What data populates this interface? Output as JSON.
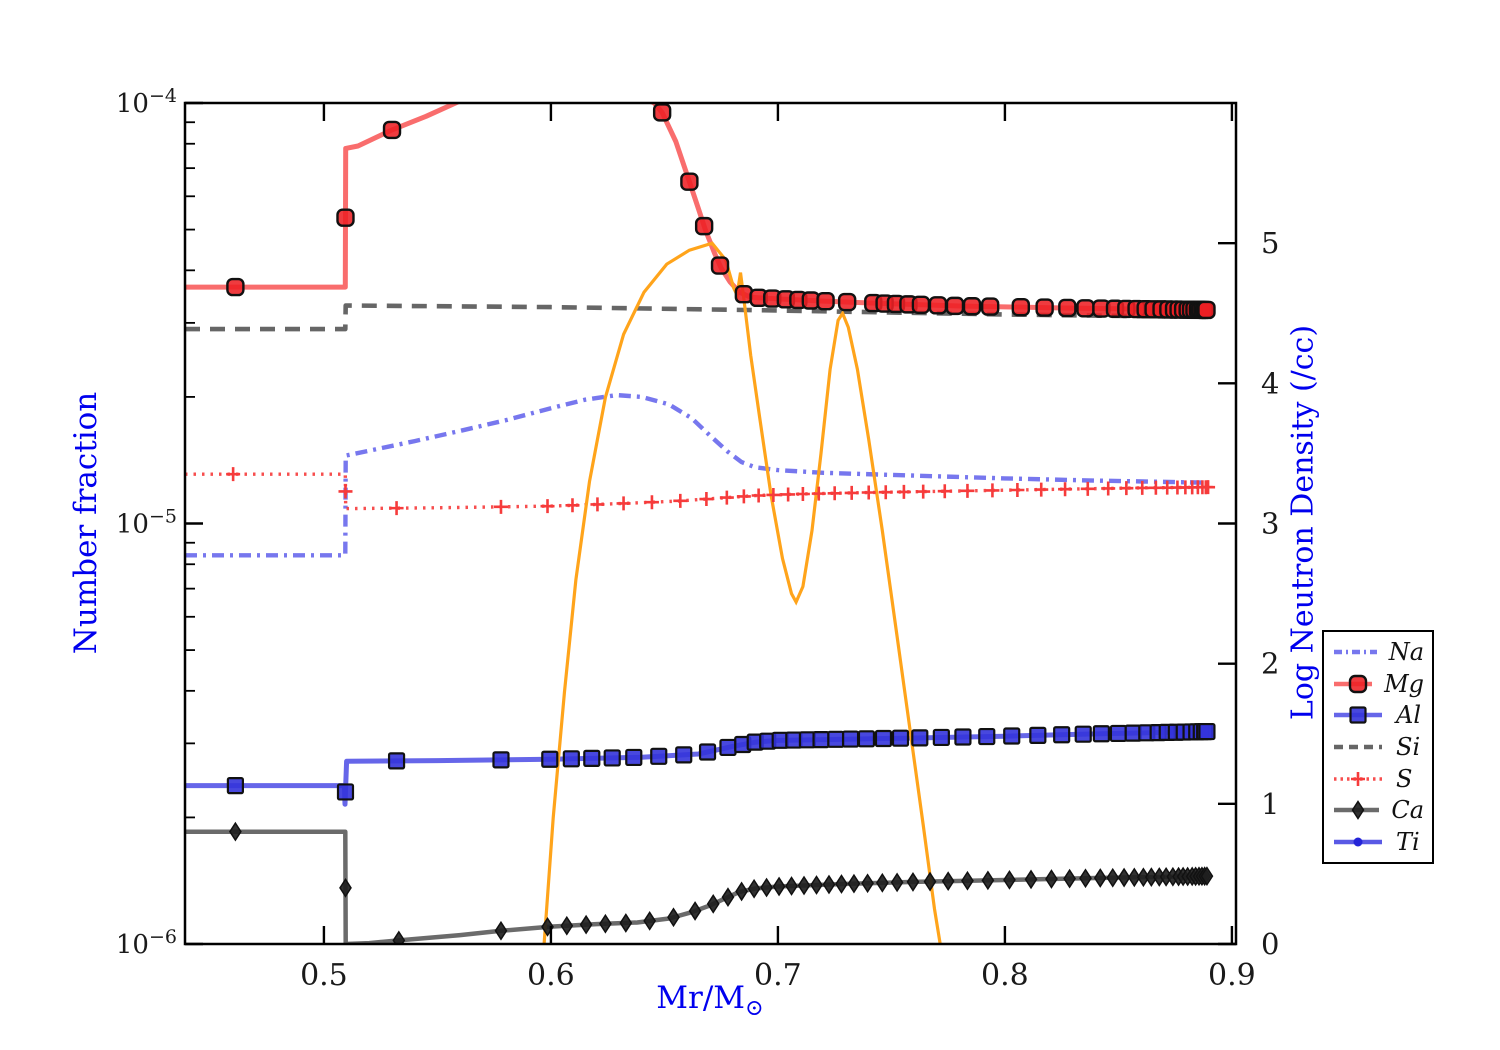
{
  "figure": {
    "background": "#ffffff",
    "colors": {
      "axis_label": "#0000ee",
      "tick_label": "#1a1a1a",
      "frame": "#000000"
    }
  },
  "chart_data": {
    "type": "line",
    "title": "",
    "xlabel_main": "Mr/M",
    "xlabel_sub": "⊙",
    "ylabel_left": "Number fraction",
    "ylabel_right": "Log Neutron Density (/cc)",
    "x_axis": {
      "min": 0.4388,
      "max": 0.9018,
      "ticks": [
        0.5,
        0.6,
        0.7,
        0.8,
        0.9
      ],
      "tick_labels": [
        "0.5",
        "0.6",
        "0.7",
        "0.8",
        "0.9"
      ]
    },
    "y_left_axis": {
      "scale": "log",
      "min": 1e-06,
      "max": 0.0001,
      "tick_exponents": [
        -4,
        -5,
        -6
      ],
      "tick_labels": [
        "10−4",
        "10−5",
        "10−6"
      ]
    },
    "y_right_axis": {
      "scale": "linear",
      "value_at_bottom": 0,
      "value_at_top": 6.0,
      "ticks": [
        0,
        1,
        2,
        3,
        4,
        5
      ],
      "tick_labels": [
        "0",
        "1",
        "2",
        "3",
        "4",
        "5"
      ]
    },
    "series": [
      {
        "name": "Na",
        "label": "Na",
        "axis": "left",
        "color": "#4343e8",
        "line": "dashdot",
        "width": 4.4,
        "opacity": 0.72,
        "marker": "none",
        "points": [
          [
            0.4388,
            8.4e-06
          ],
          [
            0.5094,
            8.4e-06
          ],
          [
            0.5096,
            1.45e-05
          ],
          [
            0.52,
            1.49e-05
          ],
          [
            0.54,
            1.57e-05
          ],
          [
            0.56,
            1.66e-05
          ],
          [
            0.58,
            1.76e-05
          ],
          [
            0.6,
            1.88e-05
          ],
          [
            0.615,
            1.97e-05
          ],
          [
            0.629,
            2.02e-05
          ],
          [
            0.64,
            2e-05
          ],
          [
            0.652,
            1.92e-05
          ],
          [
            0.662,
            1.78e-05
          ],
          [
            0.67,
            1.62e-05
          ],
          [
            0.678,
            1.48e-05
          ],
          [
            0.684,
            1.4e-05
          ],
          [
            0.69,
            1.36e-05
          ],
          [
            0.7,
            1.34e-05
          ],
          [
            0.72,
            1.32e-05
          ],
          [
            0.76,
            1.3e-05
          ],
          [
            0.8,
            1.28e-05
          ],
          [
            0.84,
            1.265e-05
          ],
          [
            0.889,
            1.25e-05
          ]
        ],
        "markers_x": []
      },
      {
        "name": "Mg",
        "label": "Mg",
        "axis": "left",
        "color": "#f84d4d",
        "line": "solid",
        "width": 5,
        "opacity": 0.82,
        "marker": "roundsquare",
        "marker_fill": "#ed2024",
        "points": [
          [
            0.4388,
            3.65e-05
          ],
          [
            0.5094,
            3.65e-05
          ],
          [
            0.5096,
            7.8e-05
          ],
          [
            0.515,
            7.9e-05
          ],
          [
            0.53,
            8.63e-05
          ],
          [
            0.545,
            9.3e-05
          ],
          [
            0.558,
            0.0001
          ],
          [
            0.565,
            0.000104
          ],
          [
            0.636,
            0.000106
          ],
          [
            0.6455,
            0.0001
          ],
          [
            0.649,
            9.5e-05
          ],
          [
            0.655,
            8.1e-05
          ],
          [
            0.661,
            6.5e-05
          ],
          [
            0.665,
            5.6e-05
          ],
          [
            0.668,
            5e-05
          ],
          [
            0.672,
            4.4e-05
          ],
          [
            0.675,
            4.05e-05
          ],
          [
            0.679,
            3.75e-05
          ],
          [
            0.683,
            3.55e-05
          ],
          [
            0.688,
            3.45e-05
          ],
          [
            0.7,
            3.42e-05
          ],
          [
            0.72,
            3.38e-05
          ],
          [
            0.75,
            3.33e-05
          ],
          [
            0.78,
            3.29e-05
          ],
          [
            0.82,
            3.26e-05
          ],
          [
            0.85,
            3.24e-05
          ],
          [
            0.889,
            3.22e-05
          ]
        ],
        "markers_x": [
          0.461,
          0.5095,
          0.53,
          0.649,
          0.661,
          0.6675,
          0.6745,
          0.685,
          0.6915,
          0.6975,
          0.7035,
          0.709,
          0.7145,
          0.721,
          0.7305,
          0.742,
          0.747,
          0.752,
          0.7575,
          0.763,
          0.7705,
          0.778,
          0.7855,
          0.7935,
          0.807,
          0.8175,
          0.8275,
          0.8355,
          0.8425,
          0.8485,
          0.8535,
          0.858,
          0.862,
          0.8655,
          0.869,
          0.872,
          0.8745,
          0.8765,
          0.8785,
          0.8805,
          0.882,
          0.8835,
          0.885,
          0.886,
          0.887,
          0.888,
          0.8888
        ]
      },
      {
        "name": "Al",
        "label": "Al",
        "axis": "left",
        "color": "#4040e4",
        "line": "solid",
        "width": 5,
        "opacity": 0.8,
        "marker": "square",
        "marker_fill": "#3434da",
        "points": [
          [
            0.4388,
            2.38e-06
          ],
          [
            0.509,
            2.38e-06
          ],
          [
            0.5093,
            2.15e-06
          ],
          [
            0.51,
            2.72e-06
          ],
          [
            0.55,
            2.73e-06
          ],
          [
            0.6,
            2.75e-06
          ],
          [
            0.64,
            2.78e-06
          ],
          [
            0.665,
            2.83e-06
          ],
          [
            0.68,
            2.95e-06
          ],
          [
            0.69,
            3.02e-06
          ],
          [
            0.7,
            3.05e-06
          ],
          [
            0.73,
            3.07e-06
          ],
          [
            0.76,
            3.09e-06
          ],
          [
            0.8,
            3.12e-06
          ],
          [
            0.84,
            3.16e-06
          ],
          [
            0.889,
            3.2e-06
          ]
        ],
        "markers_x": [
          0.461,
          0.5095,
          0.532,
          0.578,
          0.5995,
          0.609,
          0.618,
          0.627,
          0.6365,
          0.6475,
          0.6585,
          0.669,
          0.678,
          0.6845,
          0.69,
          0.6955,
          0.701,
          0.707,
          0.713,
          0.719,
          0.7255,
          0.732,
          0.739,
          0.7465,
          0.754,
          0.7625,
          0.772,
          0.7815,
          0.792,
          0.803,
          0.8145,
          0.825,
          0.8345,
          0.8425,
          0.85,
          0.8565,
          0.8625,
          0.8675,
          0.8715,
          0.8755,
          0.879,
          0.882,
          0.8845,
          0.8865,
          0.888,
          0.889
        ]
      },
      {
        "name": "Si",
        "label": "Si",
        "axis": "left",
        "color": "#404040",
        "line": "dashed",
        "width": 4.6,
        "opacity": 0.8,
        "marker": "none",
        "points": [
          [
            0.4388,
            2.9e-05
          ],
          [
            0.5094,
            2.9e-05
          ],
          [
            0.5096,
            3.3e-05
          ],
          [
            0.6,
            3.27e-05
          ],
          [
            0.7,
            3.21e-05
          ],
          [
            0.8,
            3.14e-05
          ],
          [
            0.889,
            3.1e-05
          ]
        ],
        "markers_x": []
      },
      {
        "name": "S",
        "label": "S",
        "axis": "left",
        "color": "#f63b3b",
        "line": "dotted",
        "width": 3.4,
        "opacity": 0.9,
        "marker": "plus",
        "points": [
          [
            0.4388,
            1.31e-05
          ],
          [
            0.5094,
            1.31e-05
          ],
          [
            0.5096,
            1.085e-05
          ],
          [
            0.55,
            1.09e-05
          ],
          [
            0.6,
            1.1e-05
          ],
          [
            0.63,
            1.115e-05
          ],
          [
            0.655,
            1.13e-05
          ],
          [
            0.675,
            1.15e-05
          ],
          [
            0.69,
            1.165e-05
          ],
          [
            0.71,
            1.175e-05
          ],
          [
            0.74,
            1.185e-05
          ],
          [
            0.78,
            1.195e-05
          ],
          [
            0.82,
            1.205e-05
          ],
          [
            0.86,
            1.215e-05
          ],
          [
            0.889,
            1.22e-05
          ]
        ],
        "markers_x": [
          0.46,
          0.5095,
          0.532,
          0.578,
          0.5985,
          0.6095,
          0.6205,
          0.632,
          0.6445,
          0.657,
          0.6685,
          0.6775,
          0.685,
          0.6915,
          0.698,
          0.7045,
          0.711,
          0.718,
          0.725,
          0.7325,
          0.74,
          0.7475,
          0.7555,
          0.764,
          0.7735,
          0.7835,
          0.7945,
          0.8055,
          0.816,
          0.8265,
          0.8365,
          0.8455,
          0.8535,
          0.8605,
          0.8665,
          0.8715,
          0.876,
          0.8795,
          0.8825,
          0.885,
          0.887,
          0.8885,
          0.8895
        ]
      },
      {
        "name": "Ca",
        "label": "Ca",
        "axis": "left",
        "color": "#4a4a4a",
        "line": "solid",
        "width": 4.5,
        "opacity": 0.82,
        "marker": "diamond",
        "marker_fill": "#202020",
        "points": [
          [
            0.4388,
            1.85e-06
          ],
          [
            0.5094,
            1.85e-06
          ],
          [
            0.5096,
            1e-06
          ],
          [
            0.52,
            1.005e-06
          ],
          [
            0.533,
            1.02e-06
          ],
          [
            0.56,
            1.05e-06
          ],
          [
            0.578,
            1.075e-06
          ],
          [
            0.6,
            1.1e-06
          ],
          [
            0.62,
            1.115e-06
          ],
          [
            0.638,
            1.125e-06
          ],
          [
            0.652,
            1.15e-06
          ],
          [
            0.662,
            1.19e-06
          ],
          [
            0.67,
            1.235e-06
          ],
          [
            0.677,
            1.285e-06
          ],
          [
            0.683,
            1.33e-06
          ],
          [
            0.69,
            1.355e-06
          ],
          [
            0.7,
            1.37e-06
          ],
          [
            0.73,
            1.39e-06
          ],
          [
            0.76,
            1.405e-06
          ],
          [
            0.8,
            1.42e-06
          ],
          [
            0.84,
            1.435e-06
          ],
          [
            0.889,
            1.45e-06
          ]
        ],
        "markers_x": [
          0.461,
          0.5095,
          0.533,
          0.578,
          0.5985,
          0.607,
          0.6155,
          0.624,
          0.633,
          0.6435,
          0.654,
          0.6635,
          0.6715,
          0.678,
          0.684,
          0.6895,
          0.695,
          0.7005,
          0.706,
          0.7115,
          0.717,
          0.7225,
          0.728,
          0.7335,
          0.7395,
          0.746,
          0.7525,
          0.7595,
          0.767,
          0.775,
          0.7835,
          0.7925,
          0.802,
          0.8115,
          0.8205,
          0.8285,
          0.8355,
          0.842,
          0.8475,
          0.8525,
          0.857,
          0.861,
          0.8645,
          0.868,
          0.871,
          0.874,
          0.8765,
          0.8785,
          0.8805,
          0.8825,
          0.884,
          0.8855,
          0.8868,
          0.888,
          0.889
        ]
      },
      {
        "name": "Ti",
        "label": "Ti",
        "axis": "left",
        "color": "#3c3ce0",
        "line": "solid",
        "width": 4.5,
        "opacity": 0.85,
        "marker": "circle",
        "marker_fill": "#2424d8",
        "points": [],
        "markers_x": []
      }
    ],
    "neutron_density": {
      "name": "neutron-density",
      "axis": "right",
      "color": "#ffa41b",
      "line": "solid",
      "width": 3.2,
      "opacity": 1,
      "points": [
        [
          0.597,
          0.0
        ],
        [
          0.601,
          0.9
        ],
        [
          0.606,
          1.8
        ],
        [
          0.611,
          2.6
        ],
        [
          0.617,
          3.3
        ],
        [
          0.624,
          3.9
        ],
        [
          0.632,
          4.35
        ],
        [
          0.641,
          4.65
        ],
        [
          0.651,
          4.85
        ],
        [
          0.661,
          4.95
        ],
        [
          0.671,
          5.0
        ],
        [
          0.677,
          4.88
        ],
        [
          0.6805,
          4.68
        ],
        [
          0.682,
          4.63
        ],
        [
          0.6835,
          4.79
        ],
        [
          0.685,
          4.6
        ],
        [
          0.688,
          4.2
        ],
        [
          0.692,
          3.75
        ],
        [
          0.697,
          3.2
        ],
        [
          0.702,
          2.75
        ],
        [
          0.706,
          2.5
        ],
        [
          0.708,
          2.44
        ],
        [
          0.711,
          2.55
        ],
        [
          0.715,
          2.95
        ],
        [
          0.719,
          3.5
        ],
        [
          0.723,
          4.1
        ],
        [
          0.7265,
          4.45
        ],
        [
          0.7285,
          4.5
        ],
        [
          0.731,
          4.4
        ],
        [
          0.735,
          4.1
        ],
        [
          0.74,
          3.6
        ],
        [
          0.746,
          2.95
        ],
        [
          0.752,
          2.25
        ],
        [
          0.758,
          1.55
        ],
        [
          0.764,
          0.85
        ],
        [
          0.769,
          0.25
        ],
        [
          0.7715,
          0.0
        ]
      ]
    },
    "legend": {
      "order": [
        "Na",
        "Mg",
        "Al",
        "Si",
        "S",
        "Ca",
        "Ti"
      ]
    }
  }
}
